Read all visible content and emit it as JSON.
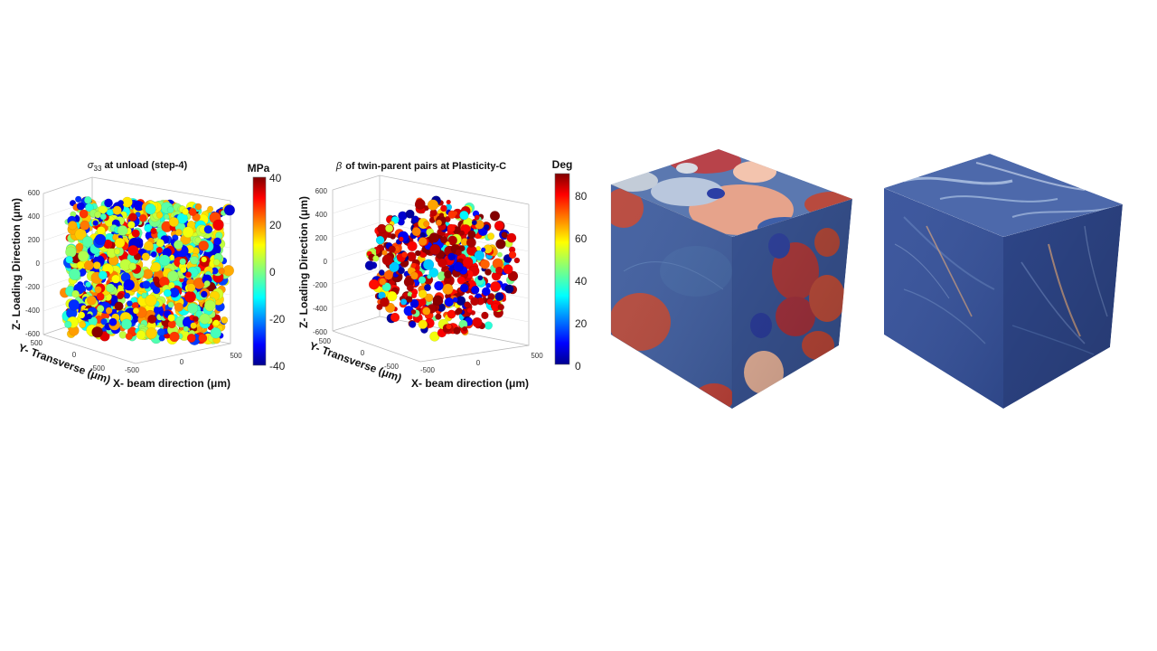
{
  "chart_data": [
    {
      "type": "scatter",
      "title": "at unload (step-4)",
      "title_symbol": "σ",
      "title_subscript": "33",
      "xlabel": "X- beam direction (μm)",
      "ylabel": "Y- Transverse (μm)",
      "zlabel": "Z- Loading Direction (μm)",
      "x_ticks": [
        "-500",
        "0",
        "500"
      ],
      "y_ticks": [
        "-500",
        "0",
        "500"
      ],
      "z_ticks": [
        "-600",
        "-400",
        "-200",
        "0",
        "200",
        "400",
        "600"
      ],
      "colorbar": {
        "unit": "MPa",
        "min": -40,
        "max": 40,
        "ticks": [
          "40",
          "20",
          "0",
          "-20",
          "-40"
        ],
        "colormap": "jet"
      },
      "distribution": "dense cube of grains filling the sample volume",
      "value_range": [
        -40,
        40
      ]
    },
    {
      "type": "scatter",
      "title": "of twin-parent pairs at Plasticity-C",
      "title_symbol": "β",
      "xlabel": "X- beam direction (μm)",
      "ylabel": "Y- Transverse (μm)",
      "zlabel": "Z- Loading Direction (μm)",
      "x_ticks": [
        "-500",
        "0",
        "500"
      ],
      "y_ticks": [
        "-500",
        "0",
        "500"
      ],
      "z_ticks": [
        "-600",
        "-400",
        "-200",
        "0",
        "200",
        "400",
        "600"
      ],
      "colorbar": {
        "unit": "Deg",
        "min": 0,
        "max": 90,
        "ticks": [
          "80",
          "60",
          "40",
          "20",
          "0"
        ],
        "colormap": "jet"
      },
      "distribution": "sparse cloud of twin-parent pairs",
      "value_range": [
        0,
        90
      ]
    }
  ],
  "renderings": [
    {
      "kind": "grain-map-cube",
      "base_color": "#3e5d9e",
      "grain_colors": [
        "#c0433a",
        "#d9927e",
        "#b8c6dd",
        "#f0c2a9",
        "#2d3fa0"
      ]
    },
    {
      "kind": "strain-field-cube",
      "base_color": "#34509a",
      "highlight_colors": [
        "#9fb8dc",
        "#d9a680"
      ]
    }
  ]
}
